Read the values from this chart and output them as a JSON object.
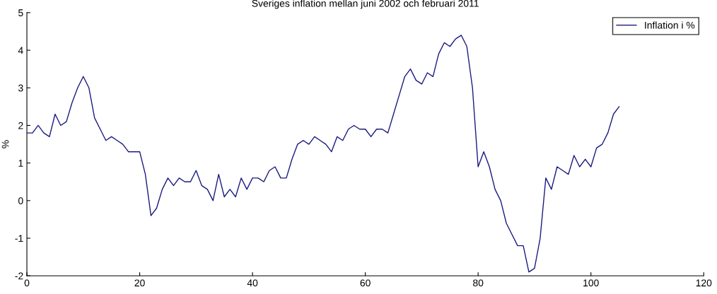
{
  "chart_data": {
    "type": "line",
    "title": "Sveriges inflation mellan juni 2002 och februari 2011",
    "ylabel": "%",
    "x": [
      0,
      1,
      2,
      3,
      4,
      5,
      6,
      7,
      8,
      9,
      10,
      11,
      12,
      13,
      14,
      15,
      16,
      17,
      18,
      19,
      20,
      21,
      22,
      23,
      24,
      25,
      26,
      27,
      28,
      29,
      30,
      31,
      32,
      33,
      34,
      35,
      36,
      37,
      38,
      39,
      40,
      41,
      42,
      43,
      44,
      45,
      46,
      47,
      48,
      49,
      50,
      51,
      52,
      53,
      54,
      55,
      56,
      57,
      58,
      59,
      60,
      61,
      62,
      63,
      64,
      65,
      66,
      67,
      68,
      69,
      70,
      71,
      72,
      73,
      74,
      75,
      76,
      77,
      78,
      79,
      80,
      81,
      82,
      83,
      84,
      85,
      86,
      87,
      88,
      89,
      90,
      91,
      92,
      93,
      94,
      95,
      96,
      97,
      98,
      99,
      100,
      101,
      102,
      103,
      104,
      105
    ],
    "series": [
      {
        "name": "Inflation i %",
        "color": "#1a1a80",
        "values": [
          1.8,
          1.8,
          2.0,
          1.8,
          1.7,
          2.3,
          2.0,
          2.1,
          2.6,
          3.0,
          3.3,
          3.0,
          2.2,
          1.9,
          1.6,
          1.7,
          1.6,
          1.5,
          1.3,
          1.3,
          1.3,
          0.7,
          -0.4,
          -0.2,
          0.3,
          0.6,
          0.4,
          0.6,
          0.5,
          0.5,
          0.8,
          0.4,
          0.3,
          0.0,
          0.7,
          0.1,
          0.3,
          0.1,
          0.6,
          0.3,
          0.6,
          0.6,
          0.5,
          0.8,
          0.9,
          0.6,
          0.6,
          1.1,
          1.5,
          1.6,
          1.5,
          1.7,
          1.6,
          1.5,
          1.3,
          1.7,
          1.6,
          1.9,
          2.0,
          1.9,
          1.9,
          1.7,
          1.9,
          1.9,
          1.8,
          2.3,
          2.8,
          3.3,
          3.5,
          3.2,
          3.1,
          3.4,
          3.3,
          3.9,
          4.2,
          4.1,
          4.3,
          4.4,
          4.1,
          3.0,
          0.9,
          1.3,
          0.9,
          0.3,
          0.0,
          -0.6,
          -0.9,
          -1.2,
          -1.2,
          -1.9,
          -1.8,
          -1.0,
          0.6,
          0.3,
          0.9,
          0.8,
          0.7,
          1.2,
          0.9,
          1.1,
          0.9,
          1.4,
          1.5,
          1.8,
          2.3,
          2.5
        ]
      }
    ],
    "xlim": [
      0,
      120
    ],
    "xticks": [
      0,
      20,
      40,
      60,
      80,
      100,
      120
    ],
    "ylim": [
      -2,
      5
    ],
    "yticks": [
      -2,
      -1,
      0,
      1,
      2,
      3,
      4,
      5
    ],
    "grid": false,
    "legend": "top right"
  }
}
